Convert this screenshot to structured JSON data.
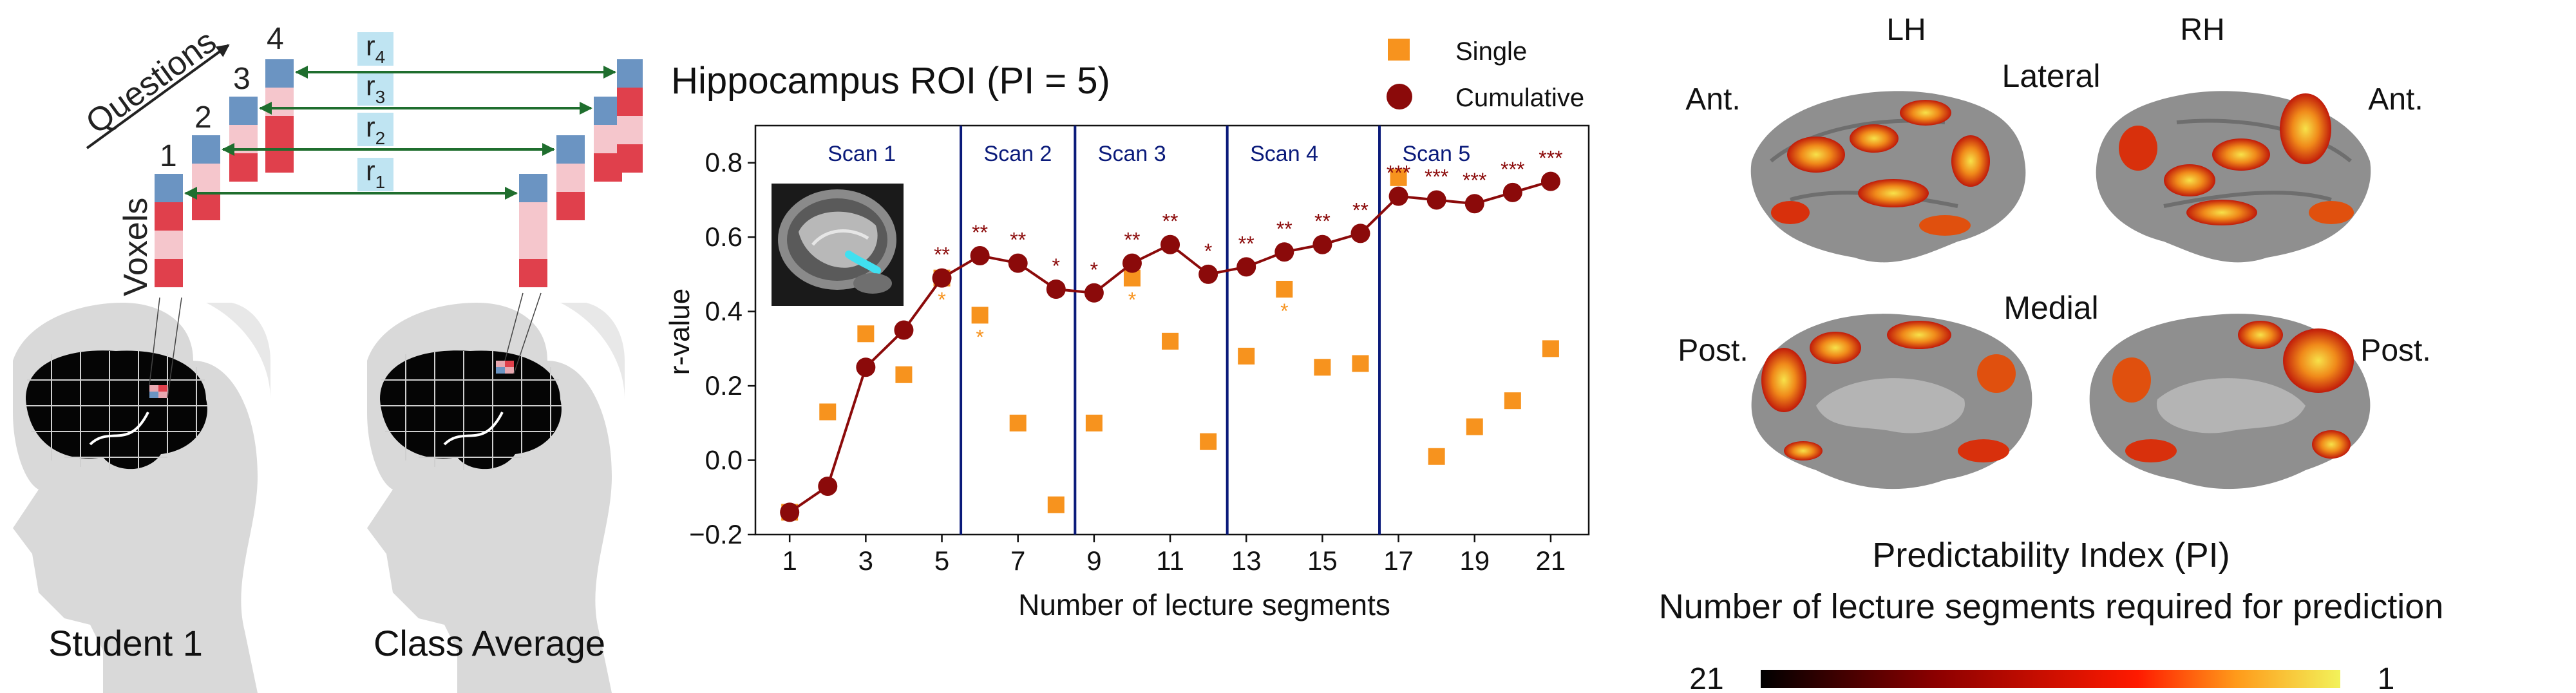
{
  "panel_a": {
    "axis_questions": "Questions",
    "axis_voxels": "Voxels",
    "question_numbers": [
      "1",
      "2",
      "3",
      "4"
    ],
    "r_labels": [
      "r",
      "r",
      "r",
      "r"
    ],
    "r_subscripts": [
      "1",
      "2",
      "3",
      "4"
    ],
    "student_label": "Student 1",
    "average_label": "Class Average"
  },
  "chart_data": {
    "type": "line",
    "title": "Hippocampus ROI (PI = 5)",
    "xlabel": "Number of lecture segments",
    "ylabel": "r-value",
    "xlim": [
      0.1,
      22
    ],
    "ylim": [
      -0.2,
      0.9
    ],
    "x_ticks": [
      "1",
      "3",
      "5",
      "7",
      "9",
      "11",
      "13",
      "15",
      "17",
      "19",
      "21"
    ],
    "y_ticks": [
      "−0.2",
      "0.0",
      "0.2",
      "0.4",
      "0.6",
      "0.8"
    ],
    "legend": [
      "Single",
      "Cumulative"
    ],
    "legend_position": "top-right, outside plot",
    "colors": {
      "single": "#f7931e",
      "cumulative": "#8b0a0a",
      "scan_line": "#0a1a7a",
      "scan_label": "#0a1a7a"
    },
    "scan_boundaries": [
      5.5,
      8.5,
      12.5,
      16.5
    ],
    "scan_labels": [
      {
        "text": "Scan 1",
        "x": 2
      },
      {
        "text": "Scan 2",
        "x": 6.1
      },
      {
        "text": "Scan 3",
        "x": 9.1
      },
      {
        "text": "Scan 4",
        "x": 13.1
      },
      {
        "text": "Scan 5",
        "x": 17.1
      }
    ],
    "series": [
      {
        "name": "Single",
        "marker": "square",
        "x": [
          1,
          2,
          3,
          4,
          5,
          6,
          7,
          8,
          9,
          10,
          11,
          12,
          13,
          14,
          15,
          16,
          17,
          18,
          19,
          20,
          21
        ],
        "values": [
          -0.14,
          0.13,
          0.34,
          0.23,
          0.49,
          0.39,
          0.1,
          -0.12,
          0.1,
          0.49,
          0.32,
          0.05,
          0.28,
          0.46,
          0.25,
          0.26,
          0.76,
          0.01,
          0.09,
          0.16,
          0.3
        ],
        "significance": [
          "",
          "",
          "",
          "",
          "*",
          "*",
          "",
          "",
          "",
          "*",
          "",
          "",
          "",
          "*",
          "",
          "",
          "",
          "",
          "",
          "",
          ""
        ]
      },
      {
        "name": "Cumulative",
        "marker": "circle",
        "x": [
          1,
          2,
          3,
          4,
          5,
          6,
          7,
          8,
          9,
          10,
          11,
          12,
          13,
          14,
          15,
          16,
          17,
          18,
          19,
          20,
          21
        ],
        "values": [
          -0.14,
          -0.07,
          0.25,
          0.35,
          0.49,
          0.55,
          0.53,
          0.46,
          0.45,
          0.53,
          0.58,
          0.5,
          0.52,
          0.56,
          0.58,
          0.61,
          0.71,
          0.7,
          0.69,
          0.72,
          0.75
        ],
        "significance": [
          "",
          "",
          "",
          "",
          "**",
          "**",
          "**",
          "*",
          "*",
          "**",
          "**",
          "*",
          "**",
          "**",
          "**",
          "**",
          "***",
          "***",
          "***",
          "***",
          "***"
        ]
      }
    ]
  },
  "panel_c": {
    "lh": "LH",
    "rh": "RH",
    "lateral": "Lateral",
    "medial": "Medial",
    "ant_left": "Ant.",
    "ant_right": "Ant.",
    "post_left": "Post.",
    "post_right": "Post.",
    "colorbar_title": "Predictability Index (PI)",
    "colorbar_subtitle": "Number of lecture segments required for prediction",
    "colorbar_min_label": "21",
    "colorbar_max_label": "1",
    "colorbar_colors": [
      "#000000",
      "#8b0000",
      "#ff1a00",
      "#ff9a1a",
      "#f2f25a"
    ]
  }
}
